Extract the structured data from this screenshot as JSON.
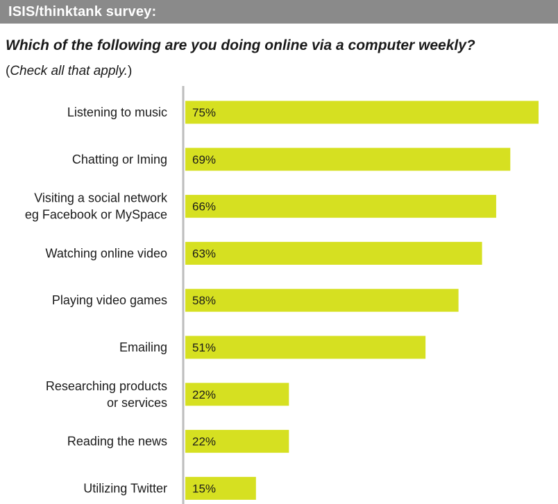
{
  "header": {
    "title": "ISIS/thinktank survey:"
  },
  "question": "Which of the following are you doing online via a computer weekly?",
  "note": {
    "open": "(",
    "text": "Check all that apply.",
    "close": ")"
  },
  "colors": {
    "bar": "#d6e021",
    "axis": "#bdbdbd",
    "header_bg": "#8a8a8a"
  },
  "chart_data": {
    "type": "bar",
    "orientation": "horizontal",
    "categories": [
      [
        "Listening to music"
      ],
      [
        "Chatting or Iming"
      ],
      [
        "Visiting a social network",
        "eg Facebook or MySpace"
      ],
      [
        "Watching online video"
      ],
      [
        "Playing video games"
      ],
      [
        "Emailing"
      ],
      [
        "Researching products",
        "or services"
      ],
      [
        "Reading the news"
      ],
      [
        "Utilizing Twitter"
      ]
    ],
    "values": [
      75,
      69,
      66,
      63,
      58,
      51,
      22,
      22,
      15
    ],
    "value_labels": [
      "75%",
      "69%",
      "66%",
      "63%",
      "58%",
      "51%",
      "22%",
      "22%",
      "15%"
    ],
    "xlim": [
      0,
      75
    ]
  }
}
